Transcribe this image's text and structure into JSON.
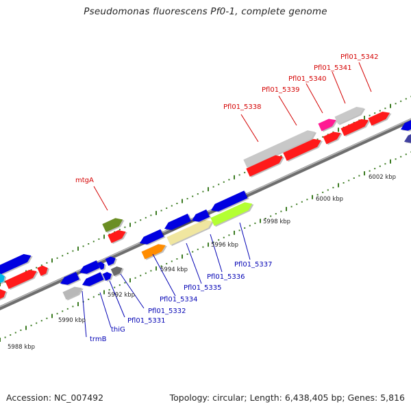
{
  "title": "Pseudomonas fluorescens Pf0-1, complete genome",
  "footer": {
    "accession": "Accession: NC_007492",
    "summary": "Topology: circular; Length: 6,438,405 bp; Genes: 5,816"
  },
  "colors": {
    "background": "#ffffff",
    "backbone": "#8a8a8a",
    "forward_label": "#d40000",
    "reverse_label": "#0000b4",
    "tick": "#3a7a20"
  },
  "ruler": {
    "labels": [
      "5988 kbp",
      "5990 kbp",
      "5992 kbp",
      "5994 kbp",
      "5996 kbp",
      "5998 kbp",
      "6000 kbp",
      "6002 kbp"
    ]
  },
  "genes": {
    "forward_labels": [
      "mtgA",
      "Pfl01_5338",
      "Pfl01_5339",
      "Pfl01_5340",
      "Pfl01_5341",
      "Pfl01_5342"
    ],
    "reverse_labels": [
      "trmB",
      "thiG",
      "Pfl01_5331",
      "Pfl01_5332",
      "Pfl01_5334",
      "Pfl01_5335",
      "Pfl01_5336",
      "Pfl01_5337"
    ]
  }
}
